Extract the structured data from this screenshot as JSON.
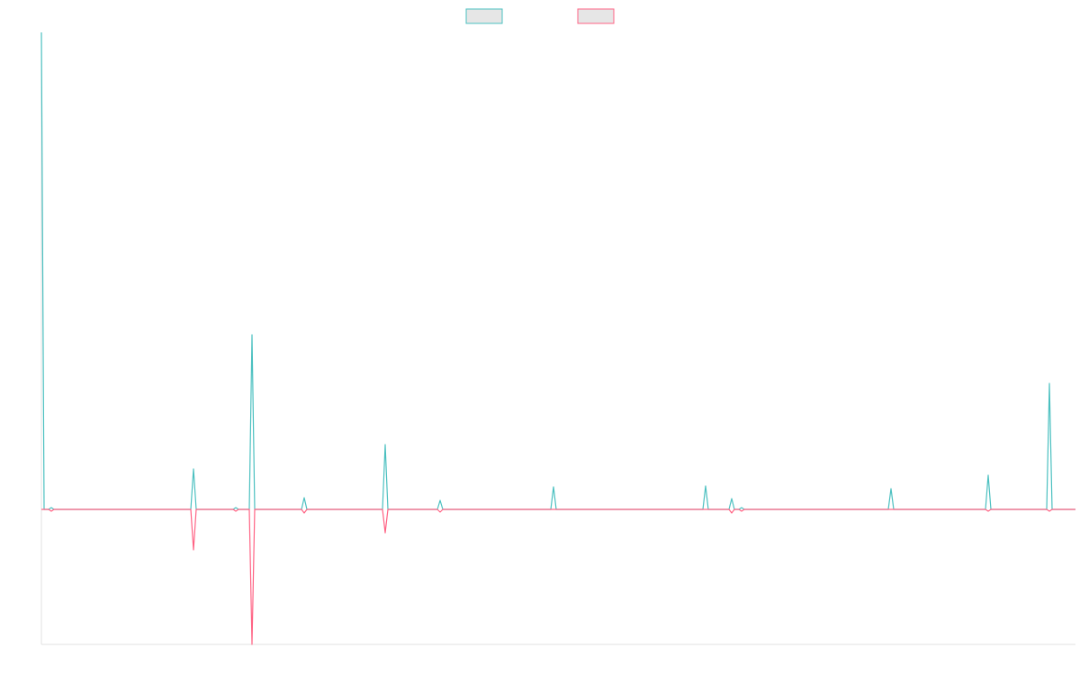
{
  "chart_data": {
    "type": "line",
    "x": [
      0,
      3,
      8,
      11,
      14,
      166,
      169,
      172,
      213,
      216,
      219,
      231,
      234,
      237,
      289,
      292,
      295,
      379,
      382,
      385,
      440,
      443,
      446,
      566,
      569,
      572,
      735,
      738,
      741,
      764,
      767,
      770,
      775,
      778,
      781,
      941,
      944,
      947,
      1049,
      1052,
      1055,
      1117,
      1120,
      1123,
      1149
    ],
    "xlim": [
      0,
      1149
    ],
    "ylim": [
      -150,
      530
    ],
    "legend": "top",
    "series": [
      {
        "color": "#4bc0c0",
        "values": [
          530,
          0,
          0,
          2,
          0,
          0,
          45,
          0,
          0,
          2,
          0,
          0,
          194,
          0,
          0,
          13,
          0,
          0,
          72,
          0,
          0,
          10,
          0,
          0,
          25,
          0,
          0,
          26,
          0,
          0,
          12,
          0,
          0,
          2,
          0,
          0,
          23,
          0,
          0,
          38,
          0,
          0,
          140,
          0,
          0
        ]
      },
      {
        "color": "#ff6384",
        "values": [
          0,
          0,
          0,
          -2,
          0,
          0,
          -45,
          0,
          0,
          -2,
          0,
          0,
          -150,
          0,
          0,
          -4,
          0,
          0,
          -26,
          0,
          0,
          -3,
          0,
          0,
          0,
          0,
          0,
          0,
          0,
          0,
          -4,
          0,
          0,
          -2,
          0,
          0,
          0,
          0,
          0,
          -2,
          0,
          0,
          -2,
          0,
          0
        ]
      }
    ]
  }
}
